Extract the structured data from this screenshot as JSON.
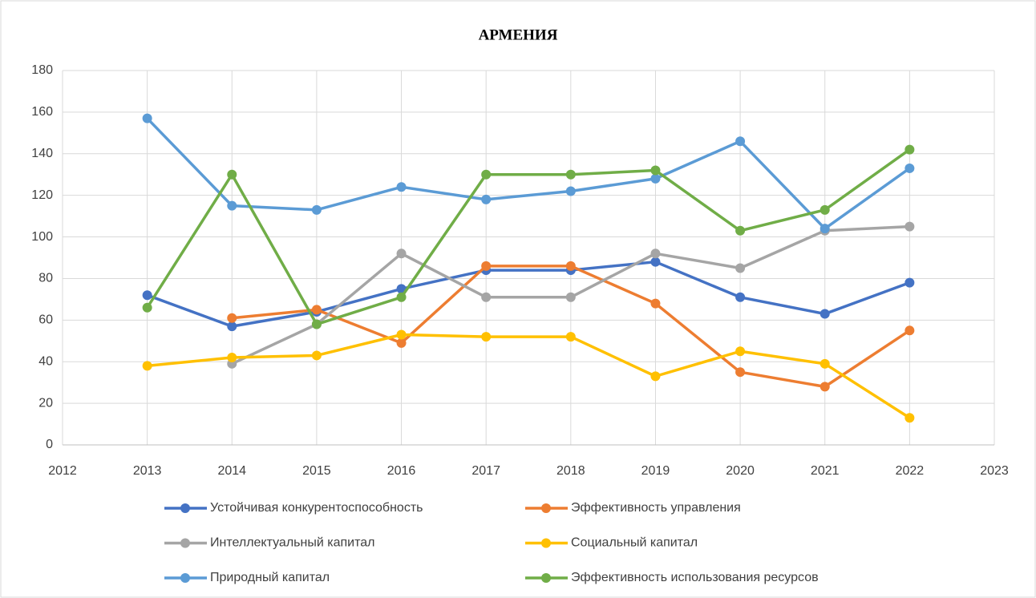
{
  "chart_data": {
    "type": "line",
    "title": "АРМЕНИЯ",
    "x": [
      2013,
      2014,
      2015,
      2016,
      2017,
      2018,
      2019,
      2020,
      2021,
      2022
    ],
    "series": [
      {
        "name": "Устойчивая конкурентоспособность",
        "color": "#4472c4",
        "values": [
          72,
          57,
          64,
          75,
          84,
          84,
          88,
          71,
          63,
          78
        ]
      },
      {
        "name": "Эффективность управления",
        "color": "#ed7d31",
        "values": [
          null,
          61,
          65,
          49,
          86,
          86,
          68,
          35,
          28,
          55
        ]
      },
      {
        "name": "Интеллектуальный капитал",
        "color": "#a5a5a5",
        "values": [
          null,
          39,
          58,
          92,
          71,
          71,
          92,
          85,
          103,
          105
        ]
      },
      {
        "name": "Социальный капитал",
        "color": "#ffc000",
        "values": [
          38,
          42,
          43,
          53,
          52,
          52,
          33,
          45,
          39,
          13
        ]
      },
      {
        "name": "Природный капитал",
        "color": "#5b9bd5",
        "values": [
          157,
          115,
          113,
          124,
          118,
          122,
          128,
          146,
          104,
          133
        ]
      },
      {
        "name": "Эффективность использования ресурсов",
        "color": "#70ad47",
        "values": [
          66,
          130,
          58,
          71,
          130,
          130,
          132,
          103,
          113,
          142
        ]
      }
    ],
    "xlim": [
      2012,
      2023
    ],
    "xticks": [
      2012,
      2013,
      2014,
      2015,
      2016,
      2017,
      2018,
      2019,
      2020,
      2021,
      2022,
      2023
    ],
    "ylim": [
      0,
      180
    ],
    "yticks": [
      0,
      20,
      40,
      60,
      80,
      100,
      120,
      140,
      160,
      180
    ],
    "grid": true,
    "legend": "bottom"
  }
}
